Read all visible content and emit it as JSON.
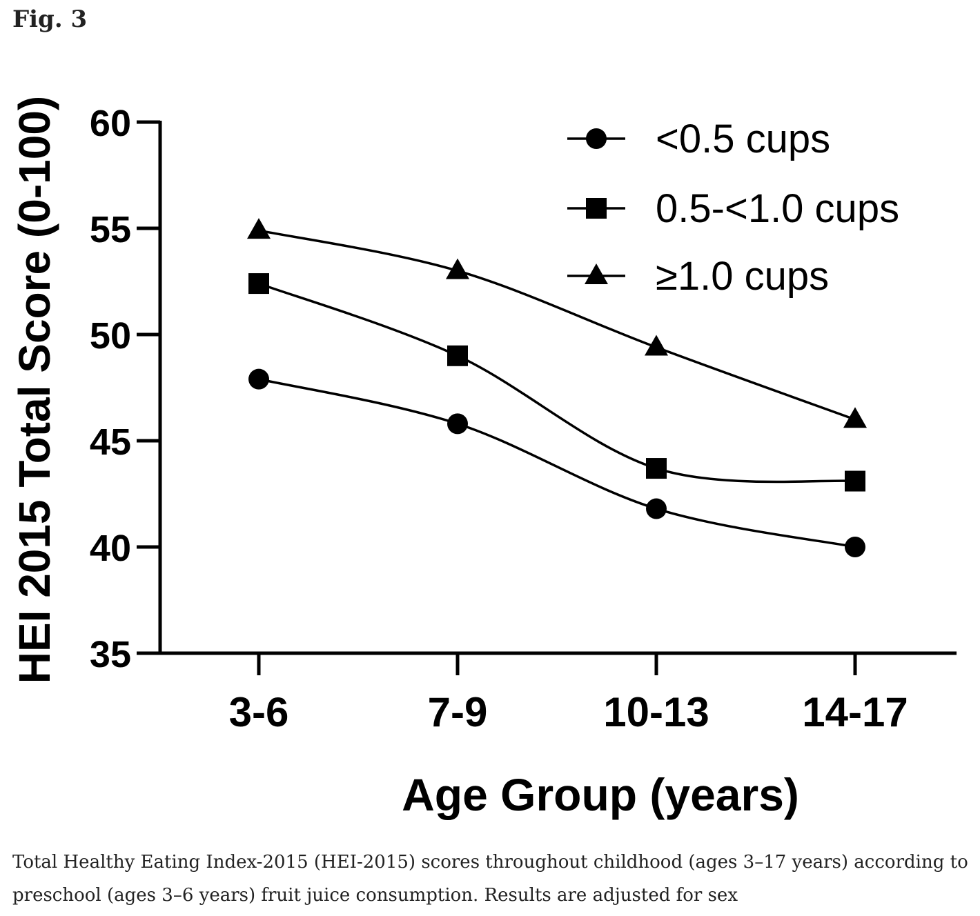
{
  "figure": {
    "label": "Fig. 3",
    "caption": "Total Healthy Eating Index-2015 (HEI-2015) scores throughout childhood (ages 3–17 years) according to preschool (ages 3–6 years) fruit juice consumption. Results are adjusted for sex"
  },
  "chart_data": {
    "type": "line",
    "title": "",
    "xlabel": "Age Group (years)",
    "ylabel": "HEI 2015 Total Score (0-100)",
    "categories": [
      "3-6",
      "7-9",
      "10-13",
      "14-17"
    ],
    "ylim": [
      35,
      60
    ],
    "yticks": [
      "35",
      "40",
      "45",
      "50",
      "55",
      "60"
    ],
    "legend_position": "top-right",
    "series": [
      {
        "name": "<0.5 cups",
        "marker": "circle",
        "values": [
          47.9,
          45.8,
          41.8,
          40.0
        ]
      },
      {
        "name": "0.5-<1.0 cups",
        "marker": "square",
        "values": [
          52.4,
          49.0,
          43.7,
          43.1
        ]
      },
      {
        "name": "≥1.0 cups",
        "marker": "triangle",
        "values": [
          54.9,
          53.0,
          49.4,
          46.0
        ]
      }
    ],
    "colors": {
      "line": "#000000",
      "axis": "#000000"
    },
    "grid": false
  }
}
